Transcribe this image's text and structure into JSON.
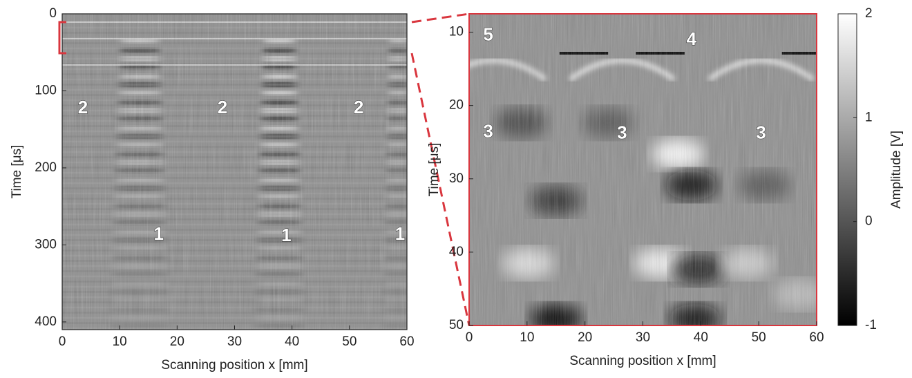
{
  "chart_data": [
    {
      "type": "heatmap",
      "xlabel": "Scanning position x [mm]",
      "ylabel": "Time [μs]",
      "xlim": [
        0,
        60
      ],
      "xticks": [
        0,
        10,
        20,
        30,
        40,
        50,
        60
      ],
      "ylim": [
        0,
        410
      ],
      "yticks": [
        0,
        100,
        200,
        300,
        400
      ],
      "y_reversed": true,
      "colormap": "gray",
      "annotations": [
        "2",
        "2",
        "2",
        "1",
        "1",
        "1"
      ]
    },
    {
      "type": "heatmap",
      "xlabel": "Scanning position x [mm]",
      "ylabel": "Time [μs]",
      "xlim": [
        0,
        60
      ],
      "xticks": [
        0,
        10,
        20,
        30,
        40,
        50,
        60
      ],
      "ylim": [
        7.5,
        50
      ],
      "yticks": [
        10,
        20,
        30,
        40,
        50
      ],
      "y_reversed": true,
      "colormap": "gray",
      "annotations": [
        "5",
        "4",
        "3",
        "3",
        "3"
      ],
      "colorbar": {
        "label": "Amplitude [V]",
        "lim": [
          -1,
          2
        ],
        "ticks": [
          -1,
          0,
          1,
          2
        ]
      }
    }
  ]
}
